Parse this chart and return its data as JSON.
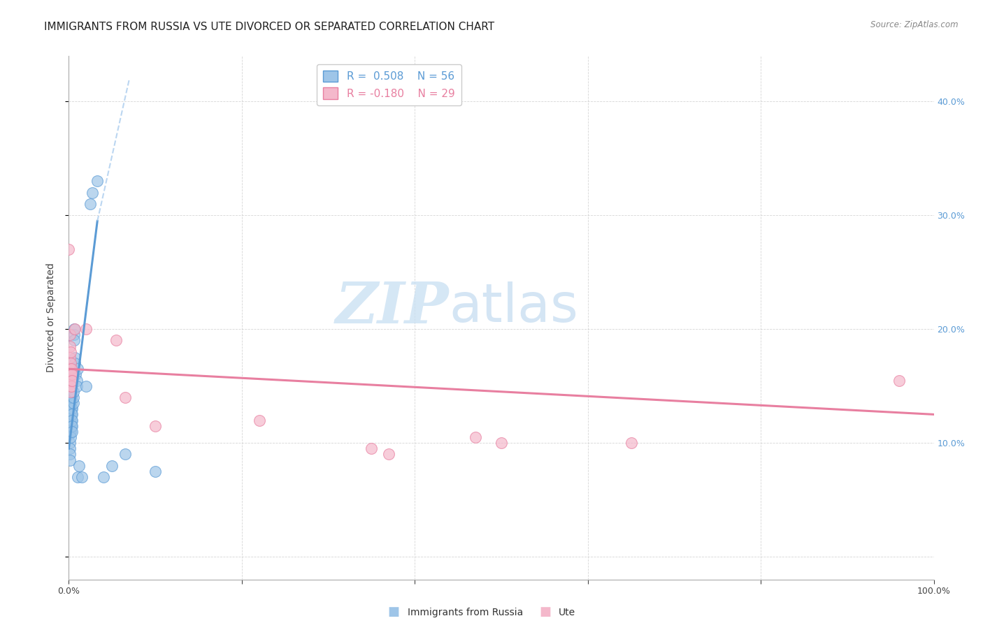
{
  "title": "IMMIGRANTS FROM RUSSIA VS UTE DIVORCED OR SEPARATED CORRELATION CHART",
  "source": "Source: ZipAtlas.com",
  "ylabel": "Divorced or Separated",
  "xlim": [
    0,
    1.0
  ],
  "ylim": [
    -0.02,
    0.44
  ],
  "xtick_positions": [
    0.0,
    0.2,
    0.4,
    0.6,
    0.8,
    1.0
  ],
  "xtick_labels": [
    "0.0%",
    "",
    "",
    "",
    "",
    "100.0%"
  ],
  "ytick_positions": [
    0.0,
    0.1,
    0.2,
    0.3,
    0.4
  ],
  "ytick_labels_right": [
    "",
    "10.0%",
    "20.0%",
    "30.0%",
    "40.0%"
  ],
  "legend_entries": [
    {
      "label": "Immigrants from Russia",
      "R": "0.508",
      "N": "56",
      "color": "#6aabdc"
    },
    {
      "label": "Ute",
      "R": "-0.180",
      "N": "29",
      "color": "#f4a0b5"
    }
  ],
  "watermark_zip": "ZIP",
  "watermark_atlas": "atlas",
  "blue_scatter": [
    [
      0.001,
      0.12
    ],
    [
      0.001,
      0.115
    ],
    [
      0.001,
      0.112
    ],
    [
      0.001,
      0.108
    ],
    [
      0.001,
      0.13
    ],
    [
      0.001,
      0.135
    ],
    [
      0.001,
      0.14
    ],
    [
      0.001,
      0.143
    ],
    [
      0.001,
      0.145
    ],
    [
      0.001,
      0.148
    ],
    [
      0.001,
      0.15
    ],
    [
      0.001,
      0.155
    ],
    [
      0.001,
      0.1
    ],
    [
      0.001,
      0.095
    ],
    [
      0.001,
      0.09
    ],
    [
      0.001,
      0.085
    ],
    [
      0.002,
      0.125
    ],
    [
      0.002,
      0.118
    ],
    [
      0.002,
      0.115
    ],
    [
      0.002,
      0.11
    ],
    [
      0.002,
      0.105
    ],
    [
      0.002,
      0.128
    ],
    [
      0.003,
      0.13
    ],
    [
      0.003,
      0.125
    ],
    [
      0.003,
      0.12
    ],
    [
      0.003,
      0.115
    ],
    [
      0.003,
      0.135
    ],
    [
      0.003,
      0.14
    ],
    [
      0.004,
      0.13
    ],
    [
      0.004,
      0.125
    ],
    [
      0.004,
      0.12
    ],
    [
      0.004,
      0.115
    ],
    [
      0.004,
      0.11
    ],
    [
      0.005,
      0.135
    ],
    [
      0.005,
      0.14
    ],
    [
      0.005,
      0.145
    ],
    [
      0.006,
      0.195
    ],
    [
      0.006,
      0.2
    ],
    [
      0.006,
      0.19
    ],
    [
      0.007,
      0.175
    ],
    [
      0.007,
      0.17
    ],
    [
      0.008,
      0.16
    ],
    [
      0.009,
      0.155
    ],
    [
      0.009,
      0.15
    ],
    [
      0.01,
      0.165
    ],
    [
      0.01,
      0.07
    ],
    [
      0.012,
      0.08
    ],
    [
      0.015,
      0.07
    ],
    [
      0.02,
      0.15
    ],
    [
      0.025,
      0.31
    ],
    [
      0.027,
      0.32
    ],
    [
      0.033,
      0.33
    ],
    [
      0.04,
      0.07
    ],
    [
      0.05,
      0.08
    ],
    [
      0.065,
      0.09
    ],
    [
      0.1,
      0.075
    ]
  ],
  "pink_scatter": [
    [
      0.0,
      0.27
    ],
    [
      0.001,
      0.195
    ],
    [
      0.001,
      0.185
    ],
    [
      0.001,
      0.175
    ],
    [
      0.001,
      0.165
    ],
    [
      0.002,
      0.18
    ],
    [
      0.002,
      0.17
    ],
    [
      0.002,
      0.16
    ],
    [
      0.002,
      0.155
    ],
    [
      0.002,
      0.15
    ],
    [
      0.002,
      0.145
    ],
    [
      0.003,
      0.165
    ],
    [
      0.003,
      0.16
    ],
    [
      0.003,
      0.155
    ],
    [
      0.003,
      0.15
    ],
    [
      0.004,
      0.16
    ],
    [
      0.004,
      0.155
    ],
    [
      0.007,
      0.2
    ],
    [
      0.02,
      0.2
    ],
    [
      0.055,
      0.19
    ],
    [
      0.065,
      0.14
    ],
    [
      0.1,
      0.115
    ],
    [
      0.22,
      0.12
    ],
    [
      0.35,
      0.095
    ],
    [
      0.37,
      0.09
    ],
    [
      0.47,
      0.105
    ],
    [
      0.5,
      0.1
    ],
    [
      0.65,
      0.1
    ],
    [
      0.96,
      0.155
    ]
  ],
  "blue_line_solid": [
    [
      0.0,
      0.095
    ],
    [
      0.033,
      0.295
    ]
  ],
  "blue_line_dashed": [
    [
      0.033,
      0.295
    ],
    [
      0.07,
      0.42
    ]
  ],
  "pink_line": [
    [
      0.0,
      0.165
    ],
    [
      1.0,
      0.125
    ]
  ],
  "bg_color": "#ffffff",
  "grid_color": "#cccccc",
  "blue_color": "#5b9bd5",
  "pink_color": "#e87fa0",
  "blue_scatter_color": "#9ec5e8",
  "pink_scatter_color": "#f4b8cb",
  "title_fontsize": 11,
  "axis_fontsize": 10,
  "tick_fontsize": 9
}
